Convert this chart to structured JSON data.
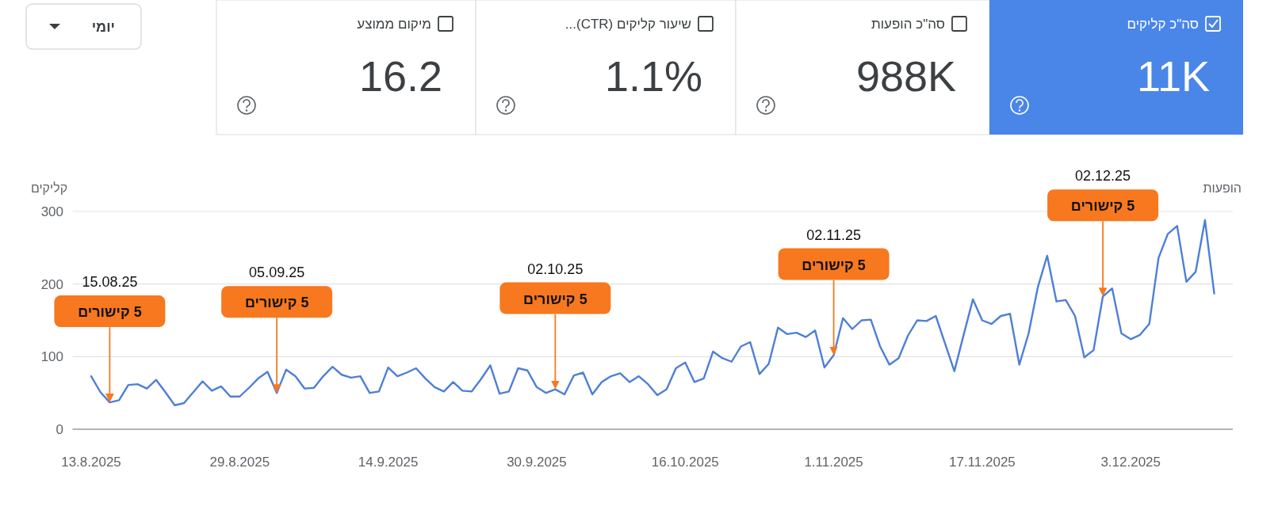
{
  "chart_data": [
    {
      "type": "other",
      "title": "יומי"
    },
    {
      "type": "other",
      "title": "מיקום ממוצע",
      "annotations": [
        "16.2"
      ]
    },
    {
      "type": "other",
      "title": "שיעור קליקים (CTR)...",
      "annotations": [
        "1.1%"
      ]
    },
    {
      "type": "other",
      "title": "סה\"כ הופעות",
      "annotations": [
        "988K"
      ]
    },
    {
      "type": "other",
      "title": "סה\"כ קליקים",
      "annotations": [
        "11K"
      ]
    },
    {
      "type": "line",
      "ylabel": "קליקים",
      "y2label": "הופעות",
      "color": "#4e7fd6",
      "grid": "y",
      "xlim": [
        "2025-08-11",
        "2025-12-14"
      ],
      "ylim": [
        0,
        300
      ],
      "yticks": [
        0,
        100,
        200,
        300
      ],
      "xticks": [
        {
          "value": "2025-08-13",
          "label": "13.8.2025"
        },
        {
          "value": "2025-08-29",
          "label": "29.8.2025"
        },
        {
          "value": "2025-09-14",
          "label": "14.9.2025"
        },
        {
          "value": "2025-09-30",
          "label": "30.9.2025"
        },
        {
          "value": "2025-10-16",
          "label": "16.10.2025"
        },
        {
          "value": "2025-11-01",
          "label": "1.11.2025"
        },
        {
          "value": "2025-11-17",
          "label": "17.11.2025"
        },
        {
          "value": "2025-12-03",
          "label": "3.12.2025"
        }
      ],
      "x": [
        "2025-08-13",
        "2025-08-14",
        "2025-08-15",
        "2025-08-16",
        "2025-08-17",
        "2025-08-18",
        "2025-08-19",
        "2025-08-20",
        "2025-08-21",
        "2025-08-22",
        "2025-08-23",
        "2025-08-24",
        "2025-08-25",
        "2025-08-26",
        "2025-08-27",
        "2025-08-28",
        "2025-08-29",
        "2025-08-30",
        "2025-08-31",
        "2025-09-01",
        "2025-09-02",
        "2025-09-03",
        "2025-09-04",
        "2025-09-05",
        "2025-09-06",
        "2025-09-07",
        "2025-09-08",
        "2025-09-09",
        "2025-09-10",
        "2025-09-11",
        "2025-09-12",
        "2025-09-13",
        "2025-09-14",
        "2025-09-15",
        "2025-09-16",
        "2025-09-17",
        "2025-09-18",
        "2025-09-19",
        "2025-09-20",
        "2025-09-21",
        "2025-09-22",
        "2025-09-23",
        "2025-09-24",
        "2025-09-25",
        "2025-09-26",
        "2025-09-27",
        "2025-09-28",
        "2025-09-29",
        "2025-09-30",
        "2025-10-01",
        "2025-10-02",
        "2025-10-03",
        "2025-10-04",
        "2025-10-05",
        "2025-10-06",
        "2025-10-07",
        "2025-10-08",
        "2025-10-09",
        "2025-10-10",
        "2025-10-11",
        "2025-10-12",
        "2025-10-13",
        "2025-10-14",
        "2025-10-15",
        "2025-10-16",
        "2025-10-17",
        "2025-10-18",
        "2025-10-19",
        "2025-10-20",
        "2025-10-21",
        "2025-10-22",
        "2025-10-23",
        "2025-10-24",
        "2025-10-25",
        "2025-10-26",
        "2025-10-27",
        "2025-10-28",
        "2025-10-29",
        "2025-10-30",
        "2025-10-31",
        "2025-11-01",
        "2025-11-02",
        "2025-11-03",
        "2025-11-04",
        "2025-11-05",
        "2025-11-06",
        "2025-11-07",
        "2025-11-08",
        "2025-11-09",
        "2025-11-10",
        "2025-11-11",
        "2025-11-12",
        "2025-11-13",
        "2025-11-14",
        "2025-11-15",
        "2025-11-16",
        "2025-11-17",
        "2025-11-18",
        "2025-11-19",
        "2025-11-20",
        "2025-11-21",
        "2025-11-22",
        "2025-11-23",
        "2025-11-24",
        "2025-11-25",
        "2025-11-26",
        "2025-11-27",
        "2025-11-28",
        "2025-11-29",
        "2025-11-30",
        "2025-12-01",
        "2025-12-02",
        "2025-12-03",
        "2025-12-04",
        "2025-12-05",
        "2025-12-06",
        "2025-12-07",
        "2025-12-08",
        "2025-12-09",
        "2025-12-10",
        "2025-12-11",
        "2025-12-12"
      ],
      "values": [
        73,
        51,
        37,
        40,
        61,
        62,
        56,
        68,
        51,
        33,
        36,
        51,
        66,
        53,
        59,
        45,
        45,
        57,
        70,
        79,
        50,
        82,
        73,
        56,
        57,
        73,
        86,
        75,
        71,
        73,
        50,
        52,
        85,
        73,
        78,
        84,
        70,
        58,
        52,
        65,
        53,
        52,
        69,
        88,
        49,
        52,
        84,
        81,
        58,
        50,
        55,
        48,
        74,
        78,
        48,
        65,
        73,
        77,
        65,
        73,
        62,
        47,
        55,
        84,
        92,
        65,
        70,
        107,
        98,
        93,
        114,
        120,
        76,
        90,
        140,
        131,
        133,
        127,
        136,
        85,
        102,
        153,
        138,
        150,
        151,
        114,
        89,
        98,
        129,
        150,
        149,
        156,
        118,
        80,
        130,
        179,
        150,
        145,
        156,
        159,
        89,
        132,
        196,
        239,
        176,
        178,
        156,
        99,
        109,
        183,
        194,
        132,
        124,
        130,
        145,
        236,
        269,
        280,
        203,
        217,
        288,
        187
      ],
      "annotations": [
        "15.08.25",
        {
          "text": "5 קישורים",
          "x": "2025-08-15",
          "y": 37
        },
        "05.09.25",
        {
          "text": "5 קישורים",
          "x": "2025-09-02",
          "y": 50
        },
        "02.10.25",
        {
          "text": "5 קישורים",
          "x": "2025-10-02",
          "y": 55
        },
        "02.11.25",
        {
          "text": "5 קישורים",
          "x": "2025-11-01",
          "y": 102
        },
        "02.12.25",
        {
          "text": "5 קישורים",
          "x": "2025-11-30",
          "y": 183
        }
      ]
    }
  ]
}
